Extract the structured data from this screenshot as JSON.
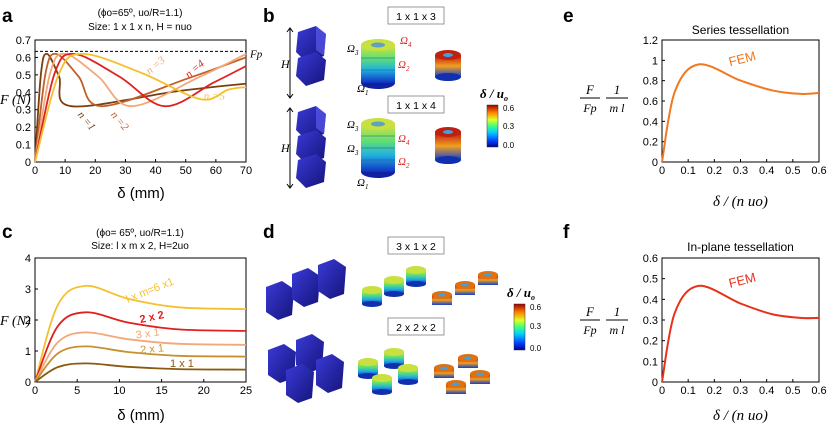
{
  "panels": {
    "a": {
      "label": "a"
    },
    "b": {
      "label": "b"
    },
    "c": {
      "label": "c"
    },
    "d": {
      "label": "d"
    },
    "e": {
      "label": "e"
    },
    "f": {
      "label": "f"
    }
  },
  "colorbar_labels": {
    "b": {
      "title": "δ / u",
      "sub": "o",
      "ticks": [
        "0.6",
        "0.3",
        "0.0"
      ]
    },
    "d": {
      "title": "δ / u",
      "sub": "o",
      "ticks": [
        "0.6",
        "0.3",
        "0.0"
      ]
    }
  },
  "panel_b": {
    "box1": "1 x 1 x 3",
    "box2": "1 x 1 x 4",
    "H": "H",
    "omega_top": [
      {
        "t": "Ω",
        "s": "3"
      },
      {
        "t": "Ω",
        "s": "4"
      },
      {
        "t": "Ω",
        "s": "2"
      },
      {
        "t": "Ω",
        "s": "1"
      }
    ],
    "omega_bot": [
      {
        "t": "Ω",
        "s": "3"
      },
      {
        "t": "Ω",
        "s": "4"
      },
      {
        "t": "Ω",
        "s": "3"
      },
      {
        "t": "Ω",
        "s": "2"
      },
      {
        "t": "Ω",
        "s": "1"
      }
    ]
  },
  "panel_d": {
    "box1": "3 x 1 x 2",
    "box2": "2 x 2 x 2"
  },
  "chart_data": [
    {
      "id": "a",
      "type": "line",
      "annotation_line1": "(ϕo=65º, uo/R=1.1)",
      "annotation_line2": "Size: 1 x 1 x n, H = nuo",
      "xlabel": "δ (mm)",
      "ylabel": "F (N)",
      "xlim": [
        0,
        70
      ],
      "ylim": [
        0,
        0.7
      ],
      "xticks": [
        "0",
        "10",
        "20",
        "30",
        "40",
        "50",
        "60",
        "70"
      ],
      "yticks": [
        "0",
        "0.1",
        "0.2",
        "0.3",
        "0.4",
        "0.5",
        "0.6",
        "0.7"
      ],
      "reference_line": {
        "label": "Fp",
        "value": 0.635
      },
      "series": [
        {
          "name": "n =1",
          "color": "#7a3f0f",
          "peak_x": 4,
          "peak_y": 0.62,
          "min_x": 12,
          "min_y": 0.32,
          "end_y": 0.45
        },
        {
          "name": "n =2",
          "color": "#c0602a",
          "peak_x": 7,
          "peak_y": 0.62,
          "min_x": 22,
          "min_y": 0.32,
          "end_y": 0.6
        },
        {
          "name": "n =3",
          "color": "#f2a878",
          "peak_x": 10,
          "peak_y": 0.62,
          "min_x": 32,
          "min_y": 0.32,
          "end_y": 0.62
        },
        {
          "name": "n =4",
          "color": "#e02020",
          "peak_x": 13,
          "peak_y": 0.62,
          "min_x": 43,
          "min_y": 0.32,
          "end_y": 0.55
        },
        {
          "name": "n =5",
          "color": "#f5c030",
          "peak_x": 16,
          "peak_y": 0.62,
          "min_x": 55,
          "min_y": 0.36,
          "end_y": 0.43
        }
      ],
      "labels": {
        "n1": "n =1",
        "n2": "n =2",
        "n3": "n =3",
        "n4": "n =4",
        "n5": "n =5"
      }
    },
    {
      "id": "c",
      "type": "line",
      "annotation_line1": "(ϕo= 65º, uo/R=1.1)",
      "annotation_line2": "Size: l x m x 2, H=2uo",
      "xlabel": "δ (mm)",
      "ylabel": "F (N)",
      "xlim": [
        0,
        25
      ],
      "ylim": [
        0,
        4
      ],
      "xticks": [
        "0",
        "5",
        "10",
        "15",
        "20",
        "25"
      ],
      "yticks": [
        "0",
        "1",
        "2",
        "3",
        "4"
      ],
      "series": [
        {
          "name": "l x m=6 x1",
          "color": "#f5c030",
          "peak": 3.1,
          "end": 2.35
        },
        {
          "name": "2 x 2",
          "color": "#e02020",
          "peak": 2.25,
          "end": 1.65
        },
        {
          "name": "3 x 1",
          "color": "#f2a878",
          "peak": 1.6,
          "end": 1.2
        },
        {
          "name": "2 x 1",
          "color": "#c89030",
          "peak": 1.15,
          "end": 0.82
        },
        {
          "name": "1 x 1",
          "color": "#8a5a10",
          "peak": 0.6,
          "end": 0.4
        }
      ],
      "peak_x": 6
    },
    {
      "id": "e",
      "type": "line",
      "title": "Series tessellation",
      "annotation": "FEM",
      "xlabel": "δ / (n uo)",
      "ylabel_frac1_num": "F",
      "ylabel_frac1_den": "Fp",
      "ylabel_frac2_num": "1",
      "ylabel_frac2_den": "m l",
      "xlim": [
        0,
        0.6
      ],
      "ylim": [
        0,
        1.2
      ],
      "xticks": [
        "0",
        "0.1",
        "0.2",
        "0.3",
        "0.4",
        "0.5",
        "0.6"
      ],
      "yticks": [
        "0",
        "0.2",
        "0.4",
        "0.6",
        "0.8",
        "1",
        "1.2"
      ],
      "color": "#f07820",
      "peak_x": 0.14,
      "peak_y": 0.96,
      "min_x": 0.53,
      "min_y": 0.67,
      "end_y": 0.68
    },
    {
      "id": "f",
      "type": "line",
      "title": "In-plane tessellation",
      "annotation": "FEM",
      "xlabel": "δ / (n uo)",
      "ylabel_frac1_num": "F",
      "ylabel_frac1_den": "Fp",
      "ylabel_frac2_num": "1",
      "ylabel_frac2_den": "m l",
      "xlim": [
        0,
        0.6
      ],
      "ylim": [
        0,
        0.6
      ],
      "xticks": [
        "0",
        "0.1",
        "0.2",
        "0.3",
        "0.4",
        "0.5",
        "0.6"
      ],
      "yticks": [
        "0",
        "0.1",
        "0.2",
        "0.3",
        "0.4",
        "0.5",
        "0.6"
      ],
      "color": "#e8301a",
      "peak_x": 0.14,
      "peak_y": 0.465,
      "min_x": 0.53,
      "min_y": 0.31,
      "end_y": 0.31
    }
  ]
}
